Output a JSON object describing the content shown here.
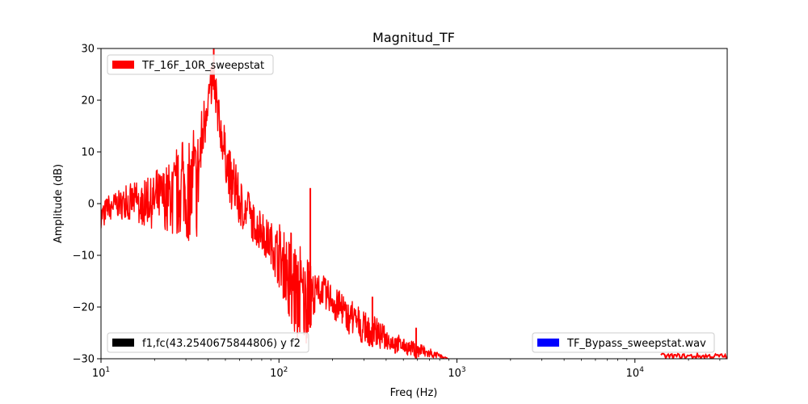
{
  "chart_data": {
    "type": "line",
    "title": "Magnitud_TF",
    "xlabel": "Freq (Hz)",
    "ylabel": "Amplitude (dB)",
    "xscale": "log",
    "xlim": [
      10,
      33000
    ],
    "ylim": [
      -30,
      30
    ],
    "grid": false,
    "x_ticks": [
      {
        "value": 10,
        "base": "10",
        "exp": "1"
      },
      {
        "value": 100,
        "base": "10",
        "exp": "2"
      },
      {
        "value": 1000,
        "base": "10",
        "exp": "3"
      },
      {
        "value": 10000,
        "base": "10",
        "exp": "4"
      }
    ],
    "y_ticks": [
      {
        "value": 30,
        "label": "30"
      },
      {
        "value": 20,
        "label": "20"
      },
      {
        "value": 10,
        "label": "10"
      },
      {
        "value": 0,
        "label": "0"
      },
      {
        "value": -10,
        "label": "−10"
      },
      {
        "value": -20,
        "label": "−20"
      },
      {
        "value": -30,
        "label": "−30"
      }
    ],
    "legends": [
      {
        "label": "TF_16F_10R_sweepstat",
        "color": "#ff0000",
        "placement": "upper-left"
      },
      {
        "label": "f1,fc(43.2540675844806) y f2",
        "color": "#000000",
        "placement": "lower-left"
      },
      {
        "label": "TF_Bypass_sweepstat.wav",
        "color": "#0000ff",
        "placement": "lower-right"
      }
    ],
    "series": [
      {
        "name": "TF_16F_10R_sweepstat",
        "color": "#ff0000",
        "style": "noisy-envelope",
        "x": [
          10,
          11,
          13,
          15,
          17,
          20,
          23,
          26,
          29,
          32,
          35,
          37,
          39,
          41,
          42,
          43,
          44,
          46,
          48,
          50,
          54,
          58,
          63,
          70,
          80,
          90,
          100,
          110,
          120,
          130,
          140,
          150,
          165,
          180,
          200,
          230,
          260,
          300,
          350,
          400,
          450,
          500,
          600,
          700,
          800,
          900
        ],
        "upper": [
          0,
          2,
          3,
          4,
          4,
          6,
          8,
          10,
          12,
          13,
          16,
          20,
          24,
          26,
          28,
          27,
          25,
          20,
          17,
          14,
          10,
          7,
          4,
          1,
          -2,
          -3,
          -4,
          -5,
          -6,
          -8,
          -10,
          -12,
          -14,
          -14,
          -15,
          -18,
          -19,
          -21,
          -22,
          -24,
          -25,
          -26,
          -27,
          -28,
          -29,
          -30
        ],
        "lower": [
          -5,
          -3,
          -3,
          -3,
          -4,
          -5,
          -5,
          -6,
          -5,
          -8,
          -6,
          5,
          14,
          18,
          20,
          22,
          18,
          12,
          8,
          4,
          -1,
          -3,
          -5,
          -7,
          -9,
          -12,
          -16,
          -20,
          -24,
          -27,
          -29,
          -24,
          -19,
          -20,
          -22,
          -24,
          -26,
          -27,
          -28,
          -28,
          -29,
          -29,
          -30,
          -30,
          -30,
          -30
        ]
      }
    ],
    "spikes": [
      {
        "x": 150,
        "y": 3
      },
      {
        "x": 43,
        "y": 30
      },
      {
        "x": 335,
        "y": -18
      },
      {
        "x": 450,
        "y": -26
      },
      {
        "x": 590,
        "y": -24
      }
    ],
    "high_freq_band": {
      "x": [
        14000,
        33000
      ],
      "upper": -29,
      "lower": -30
    }
  }
}
